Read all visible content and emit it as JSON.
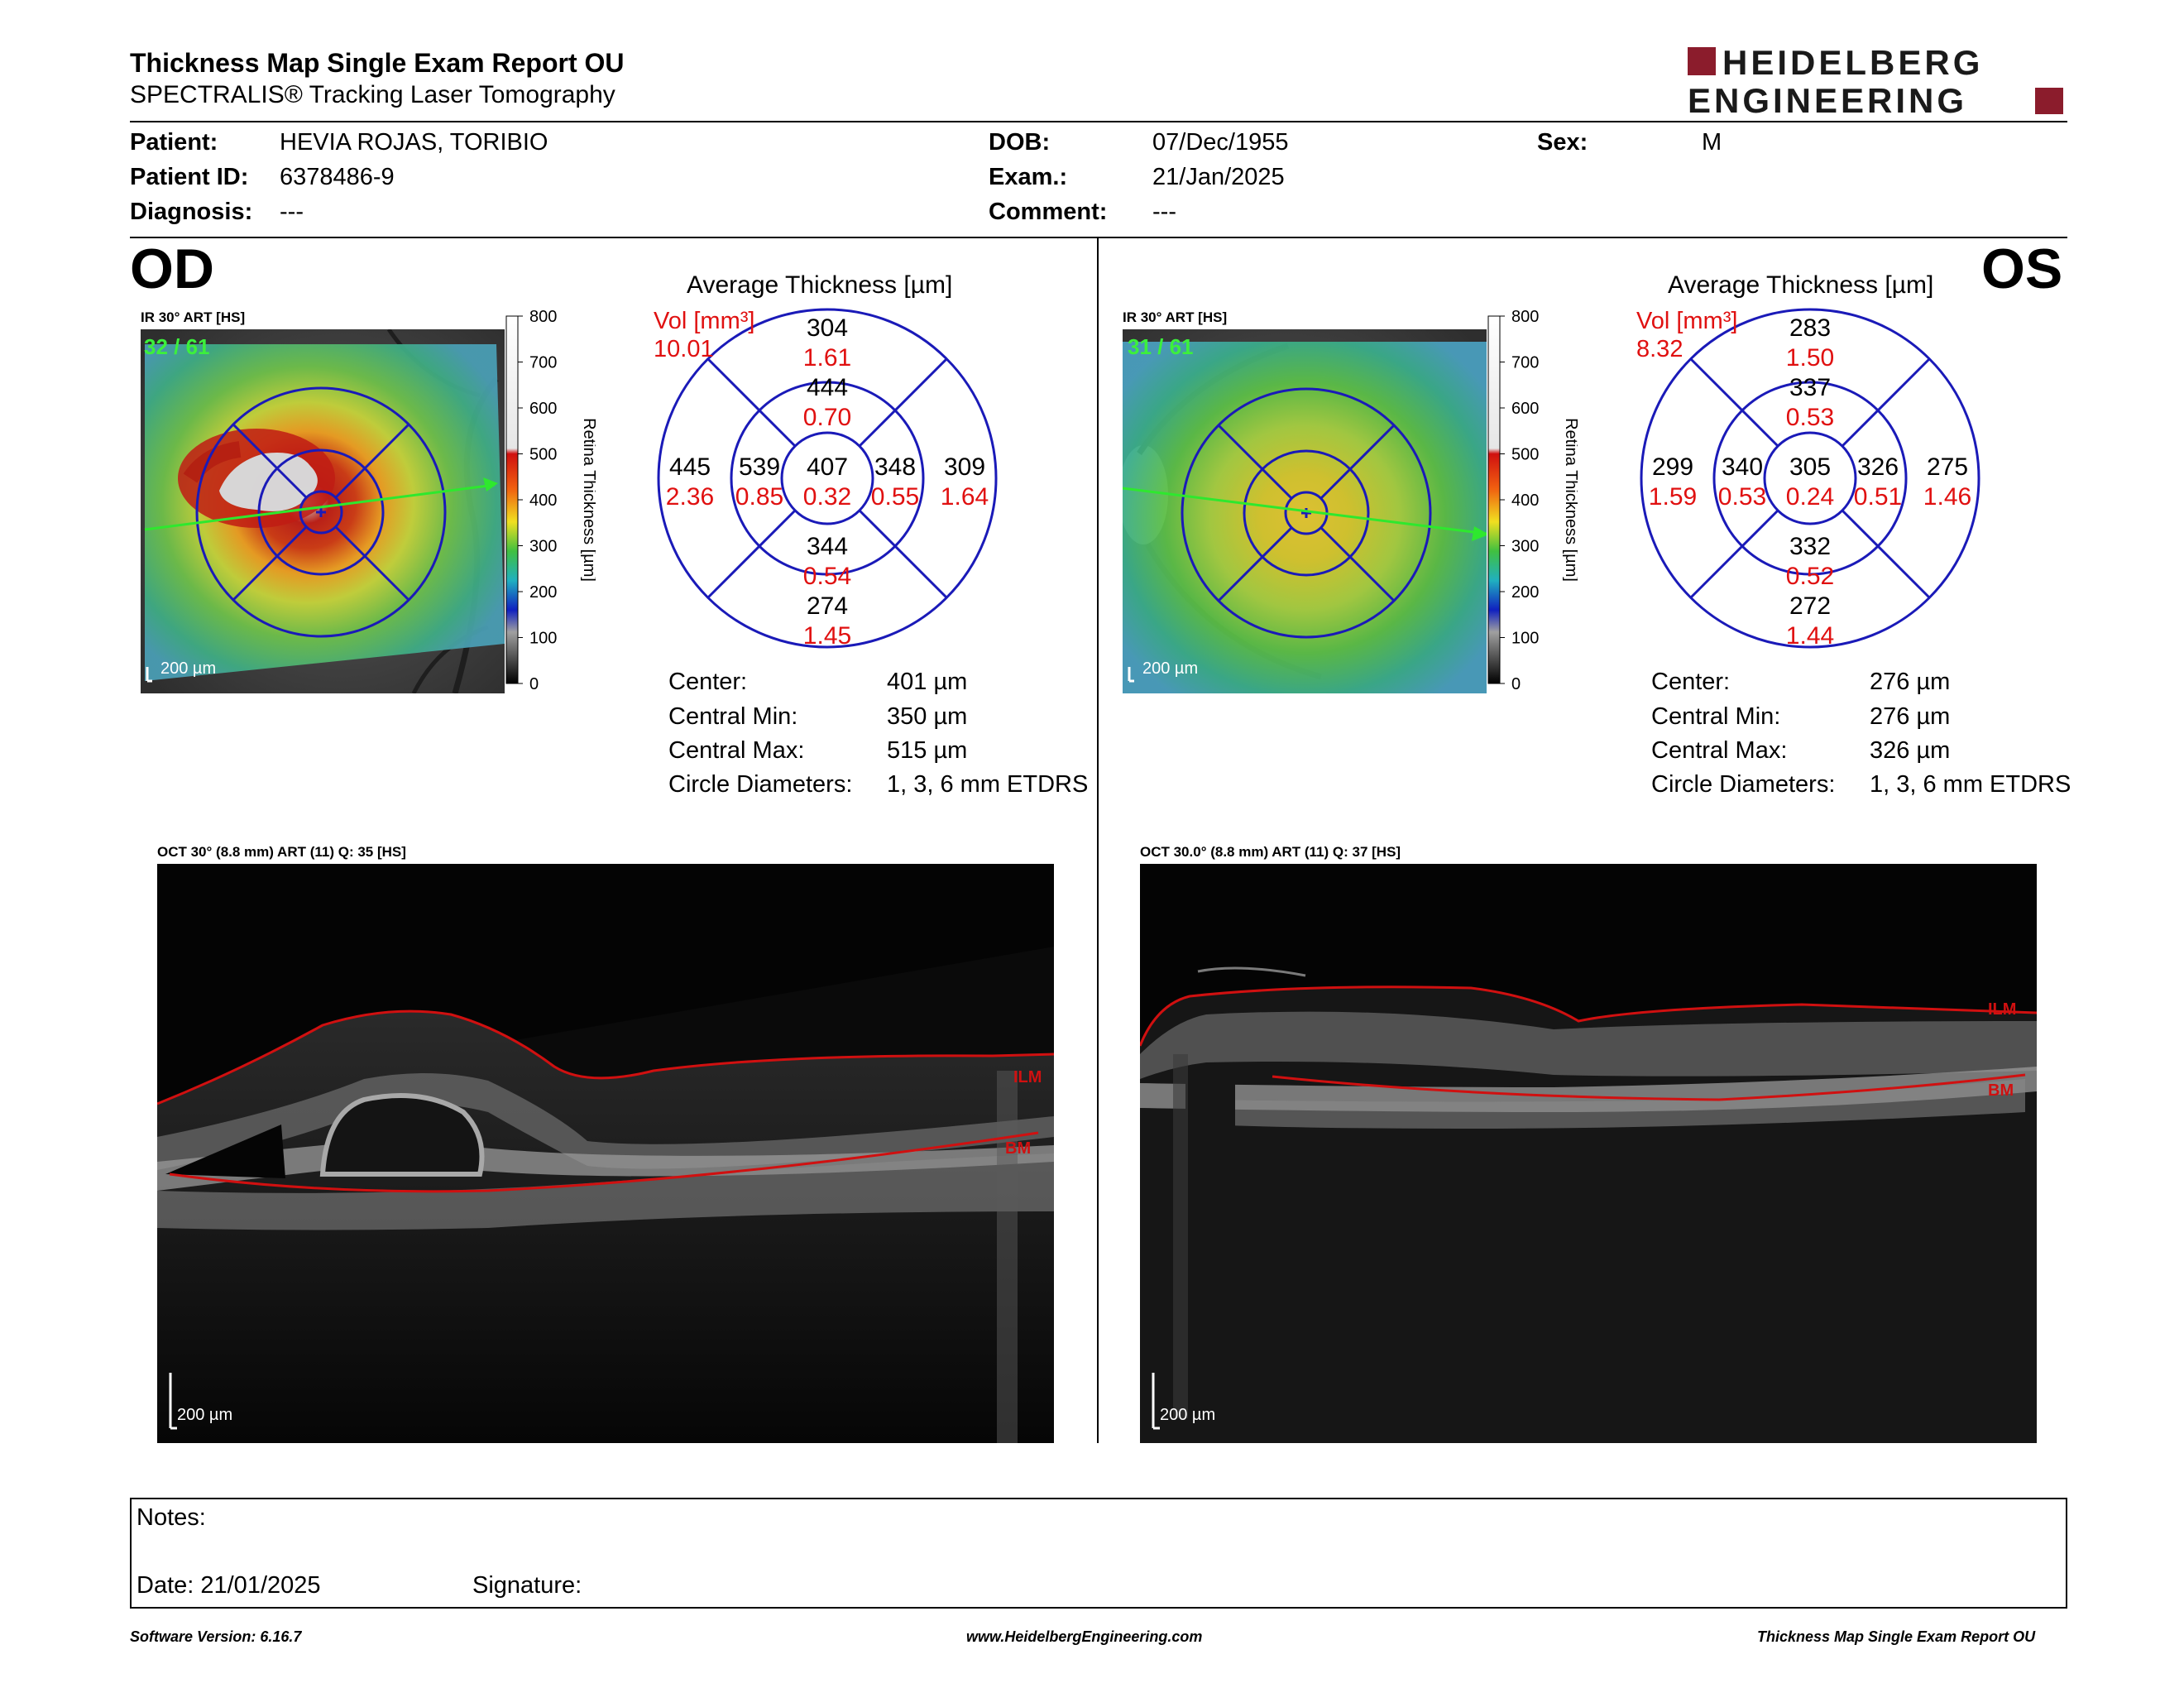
{
  "report": {
    "title": "Thickness Map Single Exam Report OU",
    "subtitle": "SPECTRALIS® Tracking Laser Tomography",
    "logo_line1": "HEIDELBERG",
    "logo_line2": "ENGINEERING",
    "brand_color": "#8b1c2c"
  },
  "patient": {
    "patient_label": "Patient:",
    "patient_value": "HEVIA ROJAS, TORIBIO",
    "id_label": "Patient ID:",
    "id_value": "6378486-9",
    "diagnosis_label": "Diagnosis:",
    "diagnosis_value": "---",
    "dob_label": "DOB:",
    "dob_value": "07/Dec/1955",
    "exam_label": "Exam.:",
    "exam_value": "21/Jan/2025",
    "comment_label": "Comment:",
    "comment_value": "---",
    "sex_label": "Sex:",
    "sex_value": "M"
  },
  "od": {
    "eye_label": "OD",
    "ir_label": "IR 30° ART [HS]",
    "ir_counter": "32 / 61",
    "scale_bar": "200 µm",
    "colorbar_ticks": [
      "800",
      "700",
      "600",
      "500",
      "400",
      "300",
      "200",
      "100",
      "0"
    ],
    "colorbar_title": "Retina Thickness [µm]",
    "avg_title": "Average Thickness [µm]",
    "vol_label": "Vol [mm³]",
    "vol_total": "10.01",
    "etdrs": {
      "center_t": "407",
      "center_v": "0.32",
      "inner_sup_t": "444",
      "inner_sup_v": "0.70",
      "inner_inf_t": "344",
      "inner_inf_v": "0.54",
      "inner_left_t": "539",
      "inner_left_v": "0.85",
      "inner_right_t": "348",
      "inner_right_v": "0.55",
      "outer_sup_t": "304",
      "outer_sup_v": "1.61",
      "outer_inf_t": "274",
      "outer_inf_v": "1.45",
      "outer_left_t": "445",
      "outer_left_v": "2.36",
      "outer_right_t": "309",
      "outer_right_v": "1.64"
    },
    "stats": {
      "center_label": "Center:",
      "center_value": "401 µm",
      "min_label": "Central Min:",
      "min_value": "350 µm",
      "max_label": "Central Max:",
      "max_value": "515 µm",
      "diam_label": "Circle Diameters:",
      "diam_value": "1, 3, 6 mm ETDRS"
    },
    "oct_label": "OCT 30° (8.8 mm) ART (11) Q: 35 [HS]",
    "oct_scale": "200 µm",
    "ilm_label": "ILM",
    "bm_label": "BM"
  },
  "os": {
    "eye_label": "OS",
    "ir_label": "IR 30° ART [HS]",
    "ir_counter": "31 / 61",
    "scale_bar": "200 µm",
    "colorbar_ticks": [
      "800",
      "700",
      "600",
      "500",
      "400",
      "300",
      "200",
      "100",
      "0"
    ],
    "colorbar_title": "Retina Thickness [µm]",
    "avg_title": "Average Thickness [µm]",
    "vol_label": "Vol [mm³]",
    "vol_total": "8.32",
    "etdrs": {
      "center_t": "305",
      "center_v": "0.24",
      "inner_sup_t": "337",
      "inner_sup_v": "0.53",
      "inner_inf_t": "332",
      "inner_inf_v": "0.52",
      "inner_left_t": "340",
      "inner_left_v": "0.53",
      "inner_right_t": "326",
      "inner_right_v": "0.51",
      "outer_sup_t": "283",
      "outer_sup_v": "1.50",
      "outer_inf_t": "272",
      "outer_inf_v": "1.44",
      "outer_left_t": "299",
      "outer_left_v": "1.59",
      "outer_right_t": "275",
      "outer_right_v": "1.46"
    },
    "stats": {
      "center_label": "Center:",
      "center_value": "276 µm",
      "min_label": "Central Min:",
      "min_value": "276 µm",
      "max_label": "Central Max:",
      "max_value": "326 µm",
      "diam_label": "Circle Diameters:",
      "diam_value": "1, 3, 6 mm ETDRS"
    },
    "oct_label": "OCT 30.0° (8.8 mm) ART (11) Q: 37 [HS]",
    "oct_scale": "200 µm",
    "ilm_label": "ILM",
    "bm_label": "BM"
  },
  "notes": {
    "notes_label": "Notes:",
    "date_label": "Date: 21/01/2025",
    "signature_label": "Signature:"
  },
  "footer": {
    "software": "Software Version: 6.16.7",
    "website": "www.HeidelbergEngineering.com",
    "report_name": "Thickness Map Single Exam Report OU"
  }
}
